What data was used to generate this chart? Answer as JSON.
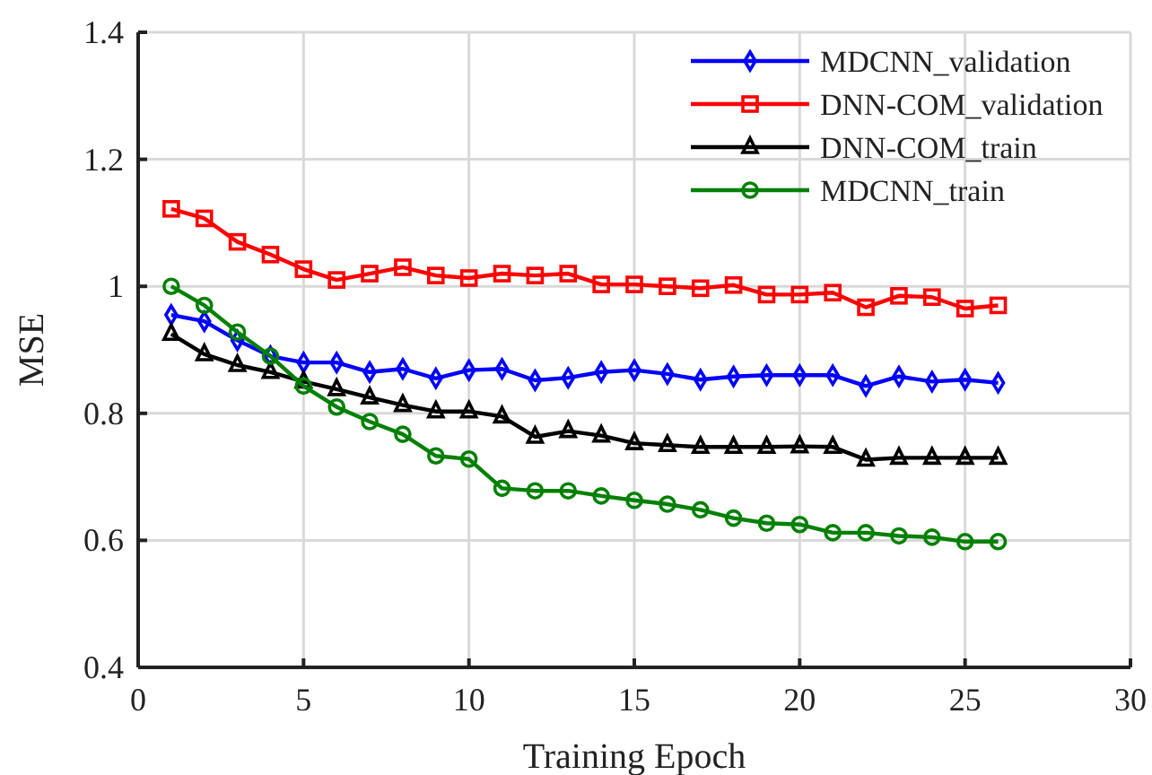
{
  "chart_data": {
    "type": "line",
    "xlabel": "Training Epoch",
    "ylabel": "MSE",
    "x": [
      1,
      2,
      3,
      4,
      5,
      6,
      7,
      8,
      9,
      10,
      11,
      12,
      13,
      14,
      15,
      16,
      17,
      18,
      19,
      20,
      21,
      22,
      23,
      24,
      25,
      26
    ],
    "series": [
      {
        "name": "MDCNN_validation",
        "color": "#0000ff",
        "marker": "diamond",
        "values": [
          0.955,
          0.945,
          0.915,
          0.89,
          0.88,
          0.88,
          0.865,
          0.87,
          0.855,
          0.868,
          0.87,
          0.852,
          0.856,
          0.865,
          0.868,
          0.862,
          0.853,
          0.858,
          0.86,
          0.86,
          0.86,
          0.843,
          0.858,
          0.85,
          0.853,
          0.848
        ]
      },
      {
        "name": "DNN-COM_validation",
        "color": "#ff0000",
        "marker": "square",
        "values": [
          1.122,
          1.107,
          1.07,
          1.05,
          1.027,
          1.01,
          1.02,
          1.03,
          1.017,
          1.013,
          1.02,
          1.017,
          1.02,
          1.003,
          1.003,
          1.0,
          0.997,
          1.002,
          0.987,
          0.987,
          0.99,
          0.967,
          0.985,
          0.983,
          0.965,
          0.97
        ]
      },
      {
        "name": "DNN-COM_train",
        "color": "#000000",
        "marker": "triangle",
        "values": [
          0.925,
          0.893,
          0.876,
          0.865,
          0.85,
          0.838,
          0.825,
          0.813,
          0.803,
          0.803,
          0.795,
          0.763,
          0.772,
          0.765,
          0.753,
          0.75,
          0.747,
          0.747,
          0.747,
          0.748,
          0.747,
          0.727,
          0.73,
          0.73,
          0.73,
          0.73
        ]
      },
      {
        "name": "MDCNN_train",
        "color": "#008000",
        "marker": "circle",
        "values": [
          1.0,
          0.97,
          0.928,
          0.89,
          0.843,
          0.81,
          0.787,
          0.767,
          0.733,
          0.728,
          0.682,
          0.678,
          0.678,
          0.67,
          0.663,
          0.657,
          0.648,
          0.635,
          0.627,
          0.625,
          0.612,
          0.612,
          0.607,
          0.605,
          0.598,
          0.598
        ]
      }
    ],
    "xlim": [
      0,
      30
    ],
    "xticks": [
      0,
      5,
      10,
      15,
      20,
      25,
      30
    ],
    "ylim": [
      0.4,
      1.4
    ],
    "yticks": [
      0.4,
      0.6,
      0.8,
      1,
      1.2,
      1.4
    ],
    "grid": true,
    "legend": "top right",
    "line_style": "solid"
  }
}
